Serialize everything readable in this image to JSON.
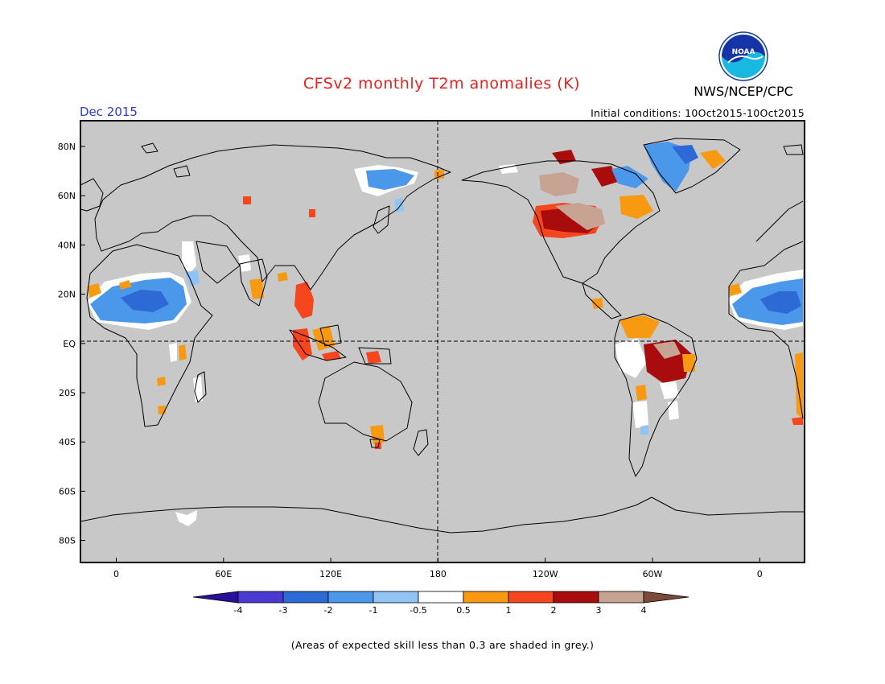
{
  "title": "CFSv2 monthly T2m anomalies (K)",
  "period": "Dec 2015",
  "agency": "NWS/NCEP/CPC",
  "initial_conditions": "Initial conditions: 10Oct2015-10Oct2015",
  "logo": {
    "text": "NOAA"
  },
  "footnote": "(Areas of expected skill less than 0.3 are shaded in grey.)",
  "map": {
    "projection": "equirectangular, Pacific-centered",
    "mask_color": "#c8c8c8",
    "lon_labels": [
      "0",
      "60E",
      "120E",
      "180",
      "120W",
      "60W",
      "0"
    ],
    "lat_labels": [
      "80N",
      "60N",
      "40N",
      "20N",
      "EQ",
      "20S",
      "40S",
      "60S",
      "80S"
    ]
  },
  "colorbar": {
    "labels": [
      "-4",
      "-3",
      "-2",
      "-1",
      "-0.5",
      "0.5",
      "1",
      "2",
      "3",
      "4"
    ],
    "bins": [
      {
        "range": "< -4",
        "color": "#2a0f99"
      },
      {
        "range": "-4 to -3",
        "color": "#4b38d0"
      },
      {
        "range": "-3 to -2",
        "color": "#2d6ad6"
      },
      {
        "range": "-2 to -1",
        "color": "#4b97ea"
      },
      {
        "range": "-1 to -0.5",
        "color": "#8fc4f4"
      },
      {
        "range": "-0.5 to 0.5",
        "color": "#ffffff"
      },
      {
        "range": "0.5 to 1",
        "color": "#f79a12"
      },
      {
        "range": "1 to 2",
        "color": "#f5461e"
      },
      {
        "range": "2 to 3",
        "color": "#a80c0c"
      },
      {
        "range": "3 to 4",
        "color": "#c7a393"
      },
      {
        "range": "> 4",
        "color": "#7b4a3b"
      }
    ]
  }
}
